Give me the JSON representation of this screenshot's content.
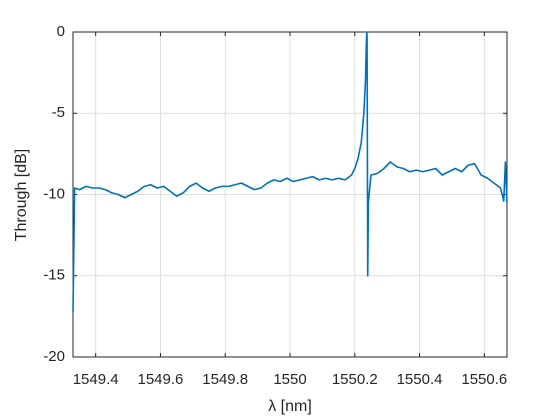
{
  "chart_data": {
    "type": "line",
    "xlabel": "λ [nm]",
    "ylabel": "Through [dB]",
    "x": [
      1549.33,
      1549.335,
      1549.35,
      1549.37,
      1549.39,
      1549.41,
      1549.43,
      1549.45,
      1549.47,
      1549.49,
      1549.51,
      1549.53,
      1549.55,
      1549.57,
      1549.59,
      1549.61,
      1549.63,
      1549.65,
      1549.67,
      1549.69,
      1549.71,
      1549.73,
      1549.75,
      1549.77,
      1549.79,
      1549.81,
      1549.83,
      1549.85,
      1549.87,
      1549.89,
      1549.91,
      1549.93,
      1549.95,
      1549.97,
      1549.99,
      1550.01,
      1550.03,
      1550.05,
      1550.07,
      1550.09,
      1550.11,
      1550.13,
      1550.15,
      1550.17,
      1550.19,
      1550.2,
      1550.21,
      1550.22,
      1550.228,
      1550.233,
      1550.236,
      1550.237,
      1550.238,
      1550.24,
      1550.242,
      1550.25,
      1550.27,
      1550.29,
      1550.31,
      1550.33,
      1550.35,
      1550.37,
      1550.39,
      1550.41,
      1550.43,
      1550.45,
      1550.47,
      1550.49,
      1550.51,
      1550.53,
      1550.55,
      1550.57,
      1550.59,
      1550.61,
      1550.63,
      1550.65,
      1550.66,
      1550.665,
      1550.67
    ],
    "series": [
      {
        "color": "#0072bd",
        "values": [
          -17.2,
          -9.6,
          -9.7,
          -9.5,
          -9.6,
          -9.6,
          -9.7,
          -9.9,
          -10.0,
          -10.2,
          -10.0,
          -9.8,
          -9.5,
          -9.4,
          -9.6,
          -9.5,
          -9.8,
          -10.1,
          -9.9,
          -9.5,
          -9.3,
          -9.6,
          -9.8,
          -9.6,
          -9.5,
          -9.5,
          -9.4,
          -9.3,
          -9.5,
          -9.7,
          -9.6,
          -9.3,
          -9.1,
          -9.2,
          -9.0,
          -9.2,
          -9.1,
          -9.0,
          -8.9,
          -9.1,
          -9.0,
          -9.1,
          -9.0,
          -9.1,
          -8.8,
          -8.4,
          -7.8,
          -6.8,
          -5.0,
          -3.0,
          -0.5,
          0,
          -0.3,
          -15,
          -10.5,
          -8.8,
          -8.7,
          -8.4,
          -8.0,
          -8.3,
          -8.4,
          -8.6,
          -8.5,
          -8.6,
          -8.5,
          -8.4,
          -8.8,
          -8.6,
          -8.4,
          -8.6,
          -8.2,
          -8.1,
          -8.8,
          -9.0,
          -9.3,
          -9.6,
          -10.4,
          -8.0,
          -10.5
        ]
      }
    ],
    "xlim": [
      1549.33,
      1550.67
    ],
    "xticks": [
      1549.4,
      1549.6,
      1549.8,
      1550,
      1550.2,
      1550.4,
      1550.6
    ],
    "ylim": [
      -20,
      0
    ],
    "yticks": [
      -20,
      -15,
      -10,
      -5,
      0
    ],
    "grid": true
  }
}
